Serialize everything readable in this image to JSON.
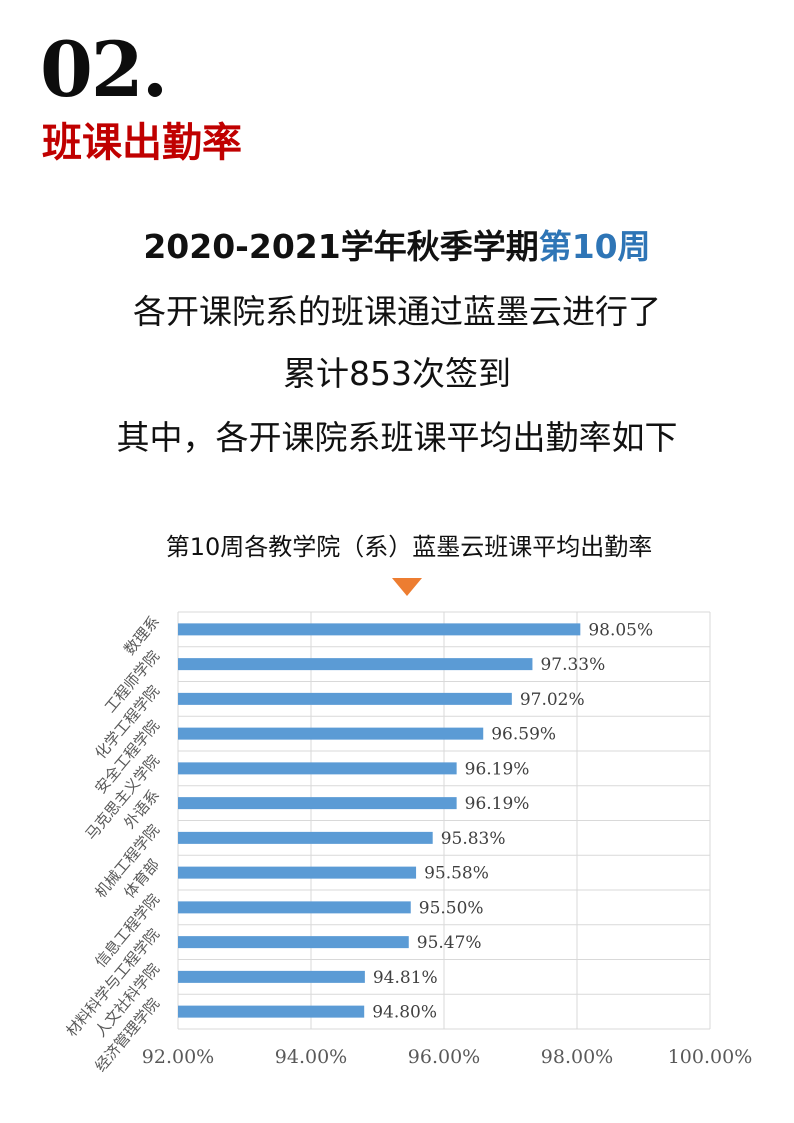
{
  "header": {
    "section_number": "02.",
    "section_title": "班课出勤率"
  },
  "intro": {
    "line1_prefix": "2020-2021学年秋季学期",
    "line1_highlight": "第10周",
    "line2": "各开课院系的班课通过蓝墨云进行了",
    "line3": "累计853次签到",
    "line4": "其中，各开课院系班课平均出勤率如下"
  },
  "colors": {
    "bar": "#5b9bd5",
    "accent": "#c00000",
    "highlight": "#2e75b6",
    "pointer": "#ed7d31"
  },
  "chart_data": {
    "type": "bar",
    "orientation": "horizontal",
    "title": "第10周各教学院（系）蓝墨云班课平均出勤率",
    "categories": [
      "数理系",
      "工程师学院",
      "化学工程学院",
      "安全工程学院",
      "马克思主义学院",
      "外语系",
      "机械工程学院",
      "体育部",
      "信息工程学院",
      "材料科学与工程学院",
      "人文社科学院",
      "经济管理学院"
    ],
    "values": [
      98.05,
      97.33,
      97.02,
      96.59,
      96.19,
      96.19,
      95.83,
      95.58,
      95.5,
      95.47,
      94.81,
      94.8
    ],
    "data_labels": [
      "98.05%",
      "97.33%",
      "97.02%",
      "96.59%",
      "96.19%",
      "96.19%",
      "95.83%",
      "95.58%",
      "95.50%",
      "95.47%",
      "94.81%",
      "94.80%"
    ],
    "xlim": [
      92,
      100
    ],
    "x_ticks": [
      92,
      94,
      96,
      98,
      100
    ],
    "x_tick_labels": [
      "92.00%",
      "94.00%",
      "96.00%",
      "98.00%",
      "100.00%"
    ],
    "grid": true,
    "legend": "none"
  }
}
